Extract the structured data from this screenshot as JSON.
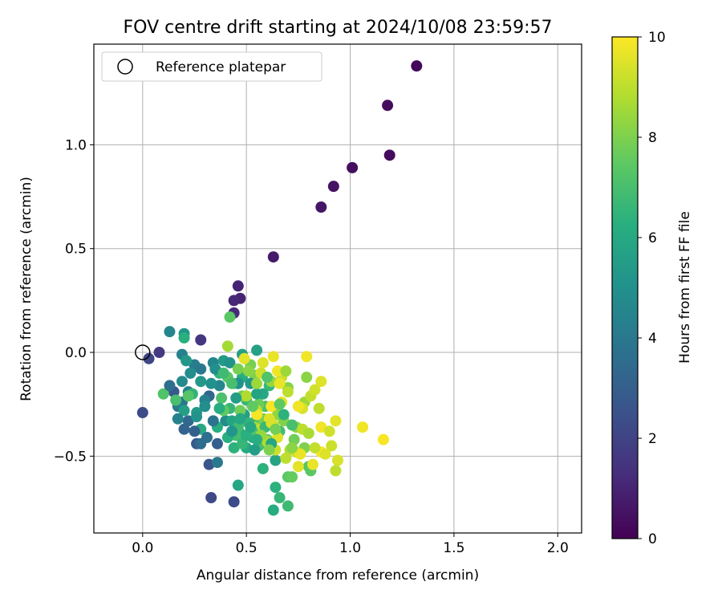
{
  "chart_data": {
    "type": "scatter",
    "title": "FOV centre drift starting at 2024/10/08 23:59:57",
    "xlabel": "Angular distance from reference (arcmin)",
    "ylabel": "Rotation from reference (arcmin)",
    "xlim": [
      -0.235,
      2.115
    ],
    "ylim": [
      -0.87,
      1.485
    ],
    "xticks": [
      0.0,
      0.5,
      1.0,
      1.5,
      2.0
    ],
    "xtick_labels": [
      "0.0",
      "0.5",
      "1.0",
      "1.5",
      "2.0"
    ],
    "yticks": [
      -0.5,
      0.0,
      0.5,
      1.0
    ],
    "ytick_labels": [
      "−0.5",
      "0.0",
      "0.5",
      "1.0"
    ],
    "grid": true,
    "legend": {
      "placement": "top-left",
      "label": "Reference platepar"
    },
    "reference_point": {
      "x": 0.0,
      "y": 0.0
    },
    "colorbar": {
      "label": "Hours from first FF file",
      "range": [
        0,
        10
      ],
      "ticks": [
        0,
        2,
        4,
        6,
        8,
        10
      ],
      "colormap": "viridis"
    },
    "points": [
      {
        "x": 1.32,
        "y": 1.38,
        "c": 0.2
      },
      {
        "x": 1.18,
        "y": 1.19,
        "c": 0.3
      },
      {
        "x": 1.19,
        "y": 0.95,
        "c": 0.3
      },
      {
        "x": 1.01,
        "y": 0.89,
        "c": 0.4
      },
      {
        "x": 0.92,
        "y": 0.8,
        "c": 0.5
      },
      {
        "x": 0.86,
        "y": 0.7,
        "c": 0.6
      },
      {
        "x": 0.63,
        "y": 0.46,
        "c": 0.7
      },
      {
        "x": 0.46,
        "y": 0.32,
        "c": 1.0
      },
      {
        "x": 0.47,
        "y": 0.26,
        "c": 1.0
      },
      {
        "x": 0.44,
        "y": 0.25,
        "c": 1.1
      },
      {
        "x": 0.44,
        "y": 0.19,
        "c": 1.2
      },
      {
        "x": 0.28,
        "y": 0.06,
        "c": 1.6
      },
      {
        "x": 0.08,
        "y": 0.0,
        "c": 1.7
      },
      {
        "x": 0.03,
        "y": -0.03,
        "c": 2.1
      },
      {
        "x": 0.0,
        "y": -0.29,
        "c": 2.3
      },
      {
        "x": 0.33,
        "y": -0.7,
        "c": 2.2
      },
      {
        "x": 0.44,
        "y": -0.72,
        "c": 2.3
      },
      {
        "x": 0.32,
        "y": -0.54,
        "c": 2.6
      },
      {
        "x": 0.26,
        "y": -0.44,
        "c": 2.8
      },
      {
        "x": 0.15,
        "y": -0.19,
        "c": 2.7
      },
      {
        "x": 0.2,
        "y": -0.37,
        "c": 3.2
      },
      {
        "x": 0.36,
        "y": -0.44,
        "c": 3.0
      },
      {
        "x": 0.22,
        "y": -0.33,
        "c": 3.4
      },
      {
        "x": 0.32,
        "y": -0.21,
        "c": 3.3
      },
      {
        "x": 0.36,
        "y": -0.53,
        "c": 4.0
      },
      {
        "x": 0.28,
        "y": -0.44,
        "c": 3.5
      },
      {
        "x": 0.13,
        "y": 0.1,
        "c": 4.5
      },
      {
        "x": 0.2,
        "y": 0.09,
        "c": 5.2
      },
      {
        "x": 0.19,
        "y": -0.01,
        "c": 4.3
      },
      {
        "x": 0.19,
        "y": -0.24,
        "c": 3.9
      },
      {
        "x": 0.22,
        "y": -0.19,
        "c": 4.4
      },
      {
        "x": 0.17,
        "y": -0.26,
        "c": 4.1
      },
      {
        "x": 0.25,
        "y": -0.06,
        "c": 4.2
      },
      {
        "x": 0.34,
        "y": -0.05,
        "c": 4.5
      },
      {
        "x": 0.3,
        "y": -0.23,
        "c": 4.3
      },
      {
        "x": 0.37,
        "y": -0.16,
        "c": 4.6
      },
      {
        "x": 0.4,
        "y": -0.33,
        "c": 4.8
      },
      {
        "x": 0.33,
        "y": -0.15,
        "c": 5.0
      },
      {
        "x": 0.26,
        "y": -0.29,
        "c": 5.4
      },
      {
        "x": 0.2,
        "y": -0.28,
        "c": 5.6
      },
      {
        "x": 0.28,
        "y": -0.14,
        "c": 5.3
      },
      {
        "x": 0.48,
        "y": -0.01,
        "c": 5.6
      },
      {
        "x": 0.55,
        "y": 0.01,
        "c": 5.7
      },
      {
        "x": 0.46,
        "y": -0.64,
        "c": 5.9
      },
      {
        "x": 0.63,
        "y": -0.76,
        "c": 6.1
      },
      {
        "x": 0.64,
        "y": -0.52,
        "c": 5.8
      },
      {
        "x": 0.49,
        "y": -0.3,
        "c": 5.6
      },
      {
        "x": 0.43,
        "y": -0.33,
        "c": 5.8
      },
      {
        "x": 0.47,
        "y": -0.39,
        "c": 6.0
      },
      {
        "x": 0.5,
        "y": -0.46,
        "c": 6.1
      },
      {
        "x": 0.53,
        "y": -0.41,
        "c": 6.2
      },
      {
        "x": 0.58,
        "y": -0.56,
        "c": 6.4
      },
      {
        "x": 0.64,
        "y": -0.65,
        "c": 6.4
      },
      {
        "x": 0.66,
        "y": -0.7,
        "c": 6.6
      },
      {
        "x": 0.7,
        "y": -0.74,
        "c": 6.8
      },
      {
        "x": 0.44,
        "y": -0.46,
        "c": 6.4
      },
      {
        "x": 0.36,
        "y": -0.36,
        "c": 6.2
      },
      {
        "x": 0.28,
        "y": -0.37,
        "c": 6.0
      },
      {
        "x": 0.24,
        "y": -0.2,
        "c": 6.5
      },
      {
        "x": 0.2,
        "y": 0.07,
        "c": 6.3
      },
      {
        "x": 0.42,
        "y": -0.27,
        "c": 6.6
      },
      {
        "x": 0.46,
        "y": -0.36,
        "c": 6.8
      },
      {
        "x": 0.52,
        "y": -0.38,
        "c": 6.9
      },
      {
        "x": 0.55,
        "y": -0.32,
        "c": 6.7
      },
      {
        "x": 0.59,
        "y": -0.26,
        "c": 7.0
      },
      {
        "x": 0.66,
        "y": -0.38,
        "c": 6.9
      },
      {
        "x": 0.61,
        "y": -0.16,
        "c": 6.6
      },
      {
        "x": 0.5,
        "y": -0.23,
        "c": 6.6
      },
      {
        "x": 0.48,
        "y": -0.12,
        "c": 6.2
      },
      {
        "x": 0.37,
        "y": -0.1,
        "c": 6.4
      },
      {
        "x": 0.42,
        "y": 0.17,
        "c": 7.4
      },
      {
        "x": 0.1,
        "y": -0.2,
        "c": 7.2
      },
      {
        "x": 0.16,
        "y": -0.23,
        "c": 7.0
      },
      {
        "x": 0.22,
        "y": -0.21,
        "c": 7.3
      },
      {
        "x": 0.38,
        "y": -0.22,
        "c": 7.1
      },
      {
        "x": 0.39,
        "y": -0.28,
        "c": 7.5
      },
      {
        "x": 0.41,
        "y": -0.12,
        "c": 7.4
      },
      {
        "x": 0.44,
        "y": -0.15,
        "c": 7.6
      },
      {
        "x": 0.48,
        "y": -0.21,
        "c": 7.8
      },
      {
        "x": 0.52,
        "y": -0.06,
        "c": 7.9
      },
      {
        "x": 0.54,
        "y": -0.11,
        "c": 8.0
      },
      {
        "x": 0.56,
        "y": -0.25,
        "c": 7.7
      },
      {
        "x": 0.58,
        "y": -0.32,
        "c": 7.9
      },
      {
        "x": 0.6,
        "y": -0.42,
        "c": 7.6
      },
      {
        "x": 0.7,
        "y": -0.6,
        "c": 7.4
      },
      {
        "x": 0.72,
        "y": -0.6,
        "c": 7.6
      },
      {
        "x": 0.73,
        "y": -0.42,
        "c": 7.8
      },
      {
        "x": 0.8,
        "y": -0.55,
        "c": 7.3
      },
      {
        "x": 0.81,
        "y": -0.57,
        "c": 7.4
      },
      {
        "x": 0.78,
        "y": -0.46,
        "c": 8.0
      },
      {
        "x": 0.74,
        "y": -0.36,
        "c": 8.2
      },
      {
        "x": 0.65,
        "y": -0.3,
        "c": 8.3
      },
      {
        "x": 0.68,
        "y": -0.33,
        "c": 8.1
      },
      {
        "x": 0.62,
        "y": -0.14,
        "c": 8.4
      },
      {
        "x": 0.7,
        "y": -0.17,
        "c": 8.1
      },
      {
        "x": 0.78,
        "y": -0.24,
        "c": 8.5
      },
      {
        "x": 0.79,
        "y": -0.12,
        "c": 8.2
      },
      {
        "x": 0.41,
        "y": 0.03,
        "c": 8.6
      },
      {
        "x": 0.54,
        "y": -0.36,
        "c": 8.6
      },
      {
        "x": 0.5,
        "y": -0.21,
        "c": 8.8
      },
      {
        "x": 0.55,
        "y": -0.28,
        "c": 9.0
      },
      {
        "x": 0.57,
        "y": -0.37,
        "c": 9.1
      },
      {
        "x": 0.63,
        "y": -0.35,
        "c": 8.9
      },
      {
        "x": 0.67,
        "y": -0.12,
        "c": 9.2
      },
      {
        "x": 0.71,
        "y": -0.47,
        "c": 8.8
      },
      {
        "x": 0.74,
        "y": -0.48,
        "c": 9.3
      },
      {
        "x": 0.77,
        "y": -0.37,
        "c": 9.0
      },
      {
        "x": 0.77,
        "y": -0.27,
        "c": 9.4
      },
      {
        "x": 0.81,
        "y": -0.21,
        "c": 9.1
      },
      {
        "x": 0.83,
        "y": -0.18,
        "c": 9.3
      },
      {
        "x": 0.86,
        "y": -0.14,
        "c": 9.5
      },
      {
        "x": 0.91,
        "y": -0.45,
        "c": 9.2
      },
      {
        "x": 0.93,
        "y": -0.33,
        "c": 9.6
      },
      {
        "x": 0.94,
        "y": -0.52,
        "c": 9.4
      },
      {
        "x": 0.93,
        "y": -0.57,
        "c": 9.0
      },
      {
        "x": 0.82,
        "y": -0.54,
        "c": 9.7
      },
      {
        "x": 0.86,
        "y": -0.36,
        "c": 9.8
      },
      {
        "x": 0.79,
        "y": -0.02,
        "c": 9.8
      },
      {
        "x": 0.63,
        "y": -0.02,
        "c": 9.7
      },
      {
        "x": 0.49,
        "y": -0.03,
        "c": 9.6
      },
      {
        "x": 0.65,
        "y": -0.09,
        "c": 9.8
      },
      {
        "x": 0.61,
        "y": -0.32,
        "c": 9.5
      },
      {
        "x": 0.62,
        "y": -0.26,
        "c": 9.9
      },
      {
        "x": 1.06,
        "y": -0.36,
        "c": 9.8
      },
      {
        "x": 1.16,
        "y": -0.42,
        "c": 9.9
      },
      {
        "x": 0.86,
        "y": -0.48,
        "c": 9.9
      },
      {
        "x": 0.76,
        "y": -0.49,
        "c": 9.7
      },
      {
        "x": 0.65,
        "y": -0.41,
        "c": 9.5
      },
      {
        "x": 0.57,
        "y": -0.1,
        "c": 9.3
      },
      {
        "x": 0.53,
        "y": -0.38,
        "c": 7.2
      },
      {
        "x": 0.45,
        "y": -0.4,
        "c": 6.9
      },
      {
        "x": 0.51,
        "y": -0.34,
        "c": 6.5
      },
      {
        "x": 0.56,
        "y": -0.45,
        "c": 7.0
      },
      {
        "x": 0.58,
        "y": -0.2,
        "c": 6.0
      },
      {
        "x": 0.6,
        "y": -0.12,
        "c": 7.2
      },
      {
        "x": 0.7,
        "y": -0.19,
        "c": 9.0
      },
      {
        "x": 0.67,
        "y": -0.24,
        "c": 9.6
      },
      {
        "x": 0.6,
        "y": -0.43,
        "c": 8.8
      },
      {
        "x": 0.64,
        "y": -0.47,
        "c": 9.2
      },
      {
        "x": 0.69,
        "y": -0.51,
        "c": 9.0
      },
      {
        "x": 0.75,
        "y": -0.55,
        "c": 9.6
      },
      {
        "x": 0.39,
        "y": -0.04,
        "c": 5.4
      },
      {
        "x": 0.42,
        "y": -0.05,
        "c": 5.1
      },
      {
        "x": 0.46,
        "y": -0.15,
        "c": 5.0
      },
      {
        "x": 0.52,
        "y": -0.15,
        "c": 5.3
      },
      {
        "x": 0.55,
        "y": -0.2,
        "c": 5.8
      },
      {
        "x": 0.59,
        "y": -0.36,
        "c": 6.7
      },
      {
        "x": 0.48,
        "y": -0.44,
        "c": 6.6
      },
      {
        "x": 0.41,
        "y": -0.41,
        "c": 6.3
      },
      {
        "x": 0.3,
        "y": -0.26,
        "c": 4.9
      },
      {
        "x": 0.26,
        "y": -0.31,
        "c": 5.1
      },
      {
        "x": 0.19,
        "y": -0.14,
        "c": 4.7
      },
      {
        "x": 0.23,
        "y": -0.1,
        "c": 4.8
      },
      {
        "x": 0.21,
        "y": -0.04,
        "c": 5.3
      },
      {
        "x": 0.17,
        "y": -0.32,
        "c": 4.4
      },
      {
        "x": 0.13,
        "y": -0.16,
        "c": 3.6
      },
      {
        "x": 0.25,
        "y": -0.38,
        "c": 3.1
      },
      {
        "x": 0.34,
        "y": -0.33,
        "c": 3.8
      },
      {
        "x": 0.31,
        "y": -0.41,
        "c": 3.6
      },
      {
        "x": 0.28,
        "y": -0.08,
        "c": 4.0
      },
      {
        "x": 0.35,
        "y": -0.08,
        "c": 4.9
      },
      {
        "x": 0.45,
        "y": -0.22,
        "c": 5.5
      },
      {
        "x": 0.5,
        "y": -0.4,
        "c": 6.3
      },
      {
        "x": 0.54,
        "y": -0.47,
        "c": 5.5
      },
      {
        "x": 0.62,
        "y": -0.44,
        "c": 5.9
      },
      {
        "x": 0.68,
        "y": -0.3,
        "c": 6.4
      },
      {
        "x": 0.66,
        "y": -0.25,
        "c": 7.5
      },
      {
        "x": 0.72,
        "y": -0.35,
        "c": 7.0
      },
      {
        "x": 0.72,
        "y": -0.46,
        "c": 8.2
      },
      {
        "x": 0.8,
        "y": -0.39,
        "c": 8.7
      },
      {
        "x": 0.83,
        "y": -0.46,
        "c": 9.1
      },
      {
        "x": 0.88,
        "y": -0.49,
        "c": 9.5
      },
      {
        "x": 0.9,
        "y": -0.38,
        "c": 9.3
      },
      {
        "x": 0.85,
        "y": -0.27,
        "c": 9.0
      },
      {
        "x": 0.75,
        "y": -0.26,
        "c": 9.8
      },
      {
        "x": 0.66,
        "y": -0.15,
        "c": 9.7
      },
      {
        "x": 0.58,
        "y": -0.05,
        "c": 9.5
      },
      {
        "x": 0.55,
        "y": -0.3,
        "c": 9.9
      },
      {
        "x": 0.62,
        "y": -0.34,
        "c": 9.4
      },
      {
        "x": 0.69,
        "y": -0.09,
        "c": 8.5
      },
      {
        "x": 0.55,
        "y": -0.15,
        "c": 8.5
      },
      {
        "x": 0.46,
        "y": -0.08,
        "c": 7.9
      },
      {
        "x": 0.51,
        "y": -0.09,
        "c": 8.2
      },
      {
        "x": 0.57,
        "y": -0.4,
        "c": 8.4
      },
      {
        "x": 0.61,
        "y": -0.47,
        "c": 8.0
      },
      {
        "x": 0.64,
        "y": -0.37,
        "c": 7.8
      },
      {
        "x": 0.53,
        "y": -0.26,
        "c": 7.5
      },
      {
        "x": 0.47,
        "y": -0.28,
        "c": 7.8
      },
      {
        "x": 0.43,
        "y": -0.15,
        "c": 7.0
      },
      {
        "x": 0.39,
        "y": -0.1,
        "c": 6.8
      },
      {
        "x": 0.37,
        "y": -0.27,
        "c": 6.2
      },
      {
        "x": 0.43,
        "y": -0.38,
        "c": 5.2
      },
      {
        "x": 0.47,
        "y": -0.32,
        "c": 5.9
      },
      {
        "x": 0.52,
        "y": -0.36,
        "c": 6.0
      },
      {
        "x": 0.55,
        "y": -0.42,
        "c": 6.2
      }
    ]
  }
}
